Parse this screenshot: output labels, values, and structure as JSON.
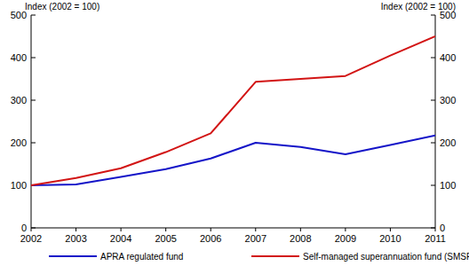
{
  "chart_data": {
    "type": "line",
    "y_label": "Index (2002 = 100)",
    "x": [
      2002,
      2003,
      2004,
      2005,
      2006,
      2007,
      2008,
      2009,
      2010,
      2011
    ],
    "xlim": [
      2002,
      2011
    ],
    "xticks": [
      2002,
      2003,
      2004,
      2005,
      2006,
      2007,
      2008,
      2009,
      2010,
      2011
    ],
    "ylim": [
      0,
      500
    ],
    "yticks": [
      0,
      100,
      200,
      300,
      400,
      500
    ],
    "grid": false,
    "legend": "bottom",
    "series": [
      {
        "name": "APRA regulated fund",
        "color": "#1414c8",
        "values": [
          100,
          102,
          120,
          138,
          163,
          200,
          190,
          173,
          195,
          217
        ]
      },
      {
        "name": "Self-managed superannuation fund (SMSF)",
        "color": "#d21414",
        "values": [
          100,
          117,
          140,
          178,
          222,
          343,
          350,
          357,
          405,
          450
        ]
      }
    ]
  }
}
